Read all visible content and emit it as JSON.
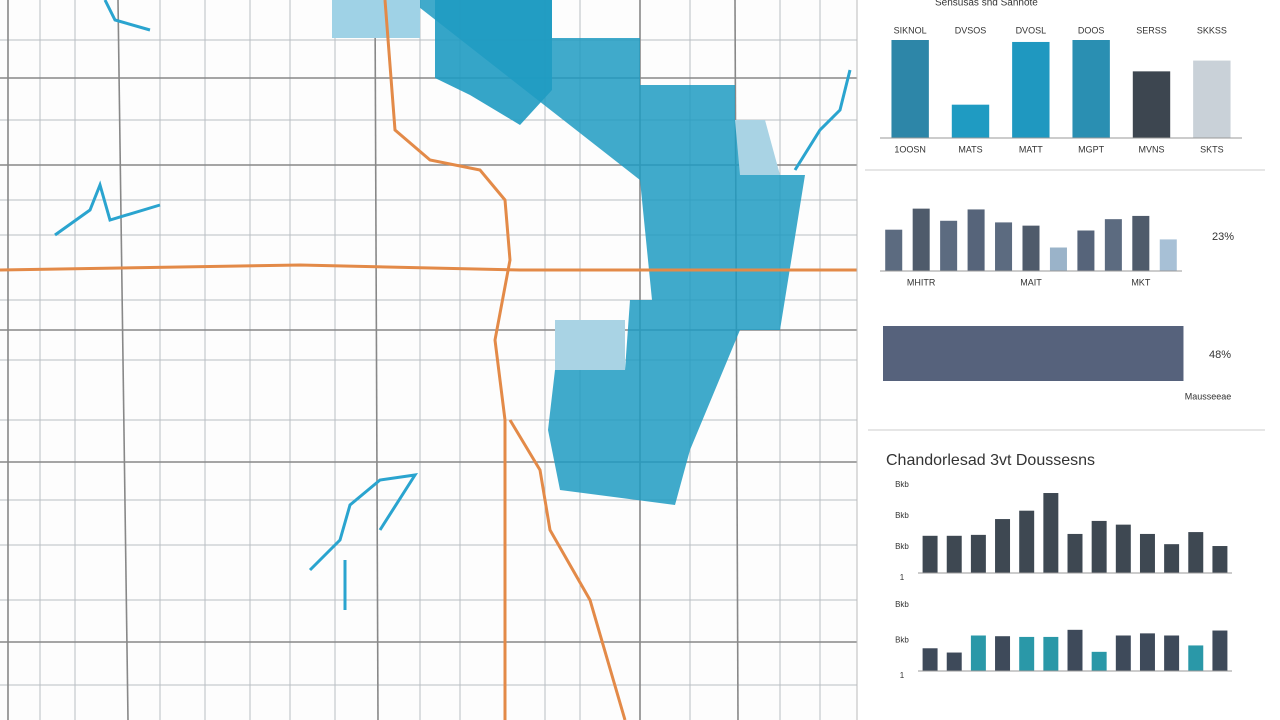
{
  "chart_data": [
    {
      "type": "bar",
      "header": "Sensusas snd Sannote",
      "top_labels": [
        "SIKNOL",
        "DVSOS",
        "DVOSL",
        "DOOS",
        "SERSS",
        "SKKSS"
      ],
      "categories": [
        "1OOSN",
        "MATS",
        "MATT",
        "MGPT",
        "MVNS",
        "SKTS"
      ],
      "values": [
        100,
        34,
        98,
        100,
        68,
        79
      ],
      "colors": [
        "#2d86a8",
        "#1f9bc2",
        "#1f98c0",
        "#2a8fb2",
        "#3d4650",
        "#c9d1d8"
      ],
      "ylim": [
        0,
        100
      ]
    },
    {
      "type": "bar",
      "annotation": "23%",
      "categories": [
        null,
        "MHITR",
        null,
        null,
        null,
        "MAIT",
        null,
        null,
        null,
        "MKT",
        null
      ],
      "values": [
        51,
        77,
        62,
        76,
        60,
        56,
        29,
        50,
        64,
        68,
        39
      ],
      "colors": [
        "#5c6b80",
        "#4f5b6b",
        "#5c6b80",
        "#56647a",
        "#5c6b80",
        "#4f5b6b",
        "#9ab3c9",
        "#56647a",
        "#5c6b80",
        "#4f5b6b",
        "#a7c0d6"
      ],
      "ylim": [
        0,
        100
      ]
    },
    {
      "type": "barh",
      "categories": [
        "Mausseeae"
      ],
      "values": [
        48
      ],
      "value_labels": [
        "48%"
      ],
      "color": "#56627c",
      "xlim": [
        0,
        50
      ]
    },
    {
      "type": "bar",
      "title": "Chandorlesad 3vt Doussesns",
      "axis_labels": [
        "Bkb",
        "Bkb",
        "Bkb",
        "1"
      ],
      "values": [
        40,
        40,
        41,
        58,
        67,
        86,
        42,
        56,
        52,
        42,
        31,
        44,
        29
      ],
      "colors": [
        "#3e4852",
        "#3e4852",
        "#3e4852",
        "#3e4852",
        "#3e4852",
        "#3e4852",
        "#3e4852",
        "#3e4852",
        "#3e4852",
        "#3e4852",
        "#3e4852",
        "#3e4852",
        "#3e4852"
      ],
      "ylim": [
        0,
        100
      ]
    },
    {
      "type": "bar",
      "axis_labels": [
        "Bkb",
        "Bkb",
        "1"
      ],
      "values": [
        32,
        26,
        50,
        49,
        48,
        48,
        58,
        27,
        50,
        53,
        50,
        36,
        57
      ],
      "colors": [
        "#3e4a5a",
        "#3e4a5a",
        "#2a98a8",
        "#3e4a5a",
        "#2a98a8",
        "#2a98a8",
        "#3e4a5a",
        "#2a98a8",
        "#3e4a5a",
        "#3e4a5a",
        "#3e4a5a",
        "#2a98a8",
        "#3e4a5a"
      ],
      "ylim": [
        0,
        100
      ]
    }
  ]
}
